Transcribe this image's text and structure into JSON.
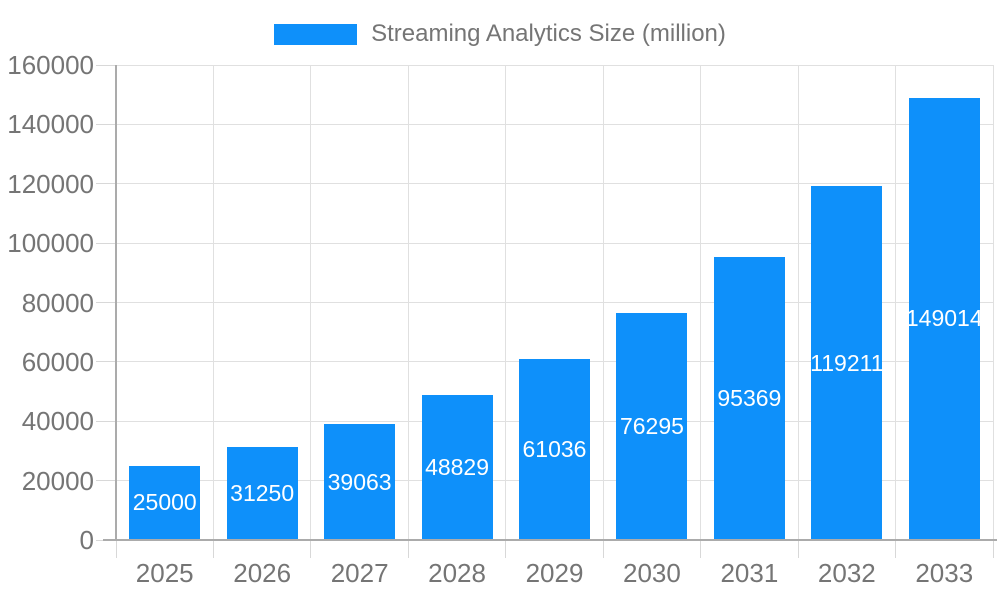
{
  "legend": {
    "label": "Streaming Analytics Size (million)"
  },
  "chart_data": {
    "type": "bar",
    "title": "Streaming Analytics Size (million)",
    "series_name": "Streaming Analytics Size (million)",
    "categories": [
      "2025",
      "2026",
      "2027",
      "2028",
      "2029",
      "2030",
      "2031",
      "2032",
      "2033"
    ],
    "values": [
      25000,
      31250,
      39063,
      48829,
      61036,
      76295,
      95369,
      119211,
      149014
    ],
    "bar_value_labels": [
      "25000",
      "31250",
      "39063",
      "48829",
      "61036",
      "76295",
      "95369",
      "119211",
      "149014"
    ],
    "xlabel": "",
    "ylabel": "",
    "ylim": [
      0,
      160000
    ],
    "ytick_step": 20000,
    "yticks": [
      0,
      20000,
      40000,
      60000,
      80000,
      100000,
      120000,
      140000,
      160000
    ],
    "grid": true,
    "legend_position": "top",
    "bar_color": "#0e90fa",
    "bar_label_color": "#ffffff",
    "axis_text_color": "#757575",
    "grid_color": "#e0e0e0",
    "axis_line_color": "#ababab"
  }
}
